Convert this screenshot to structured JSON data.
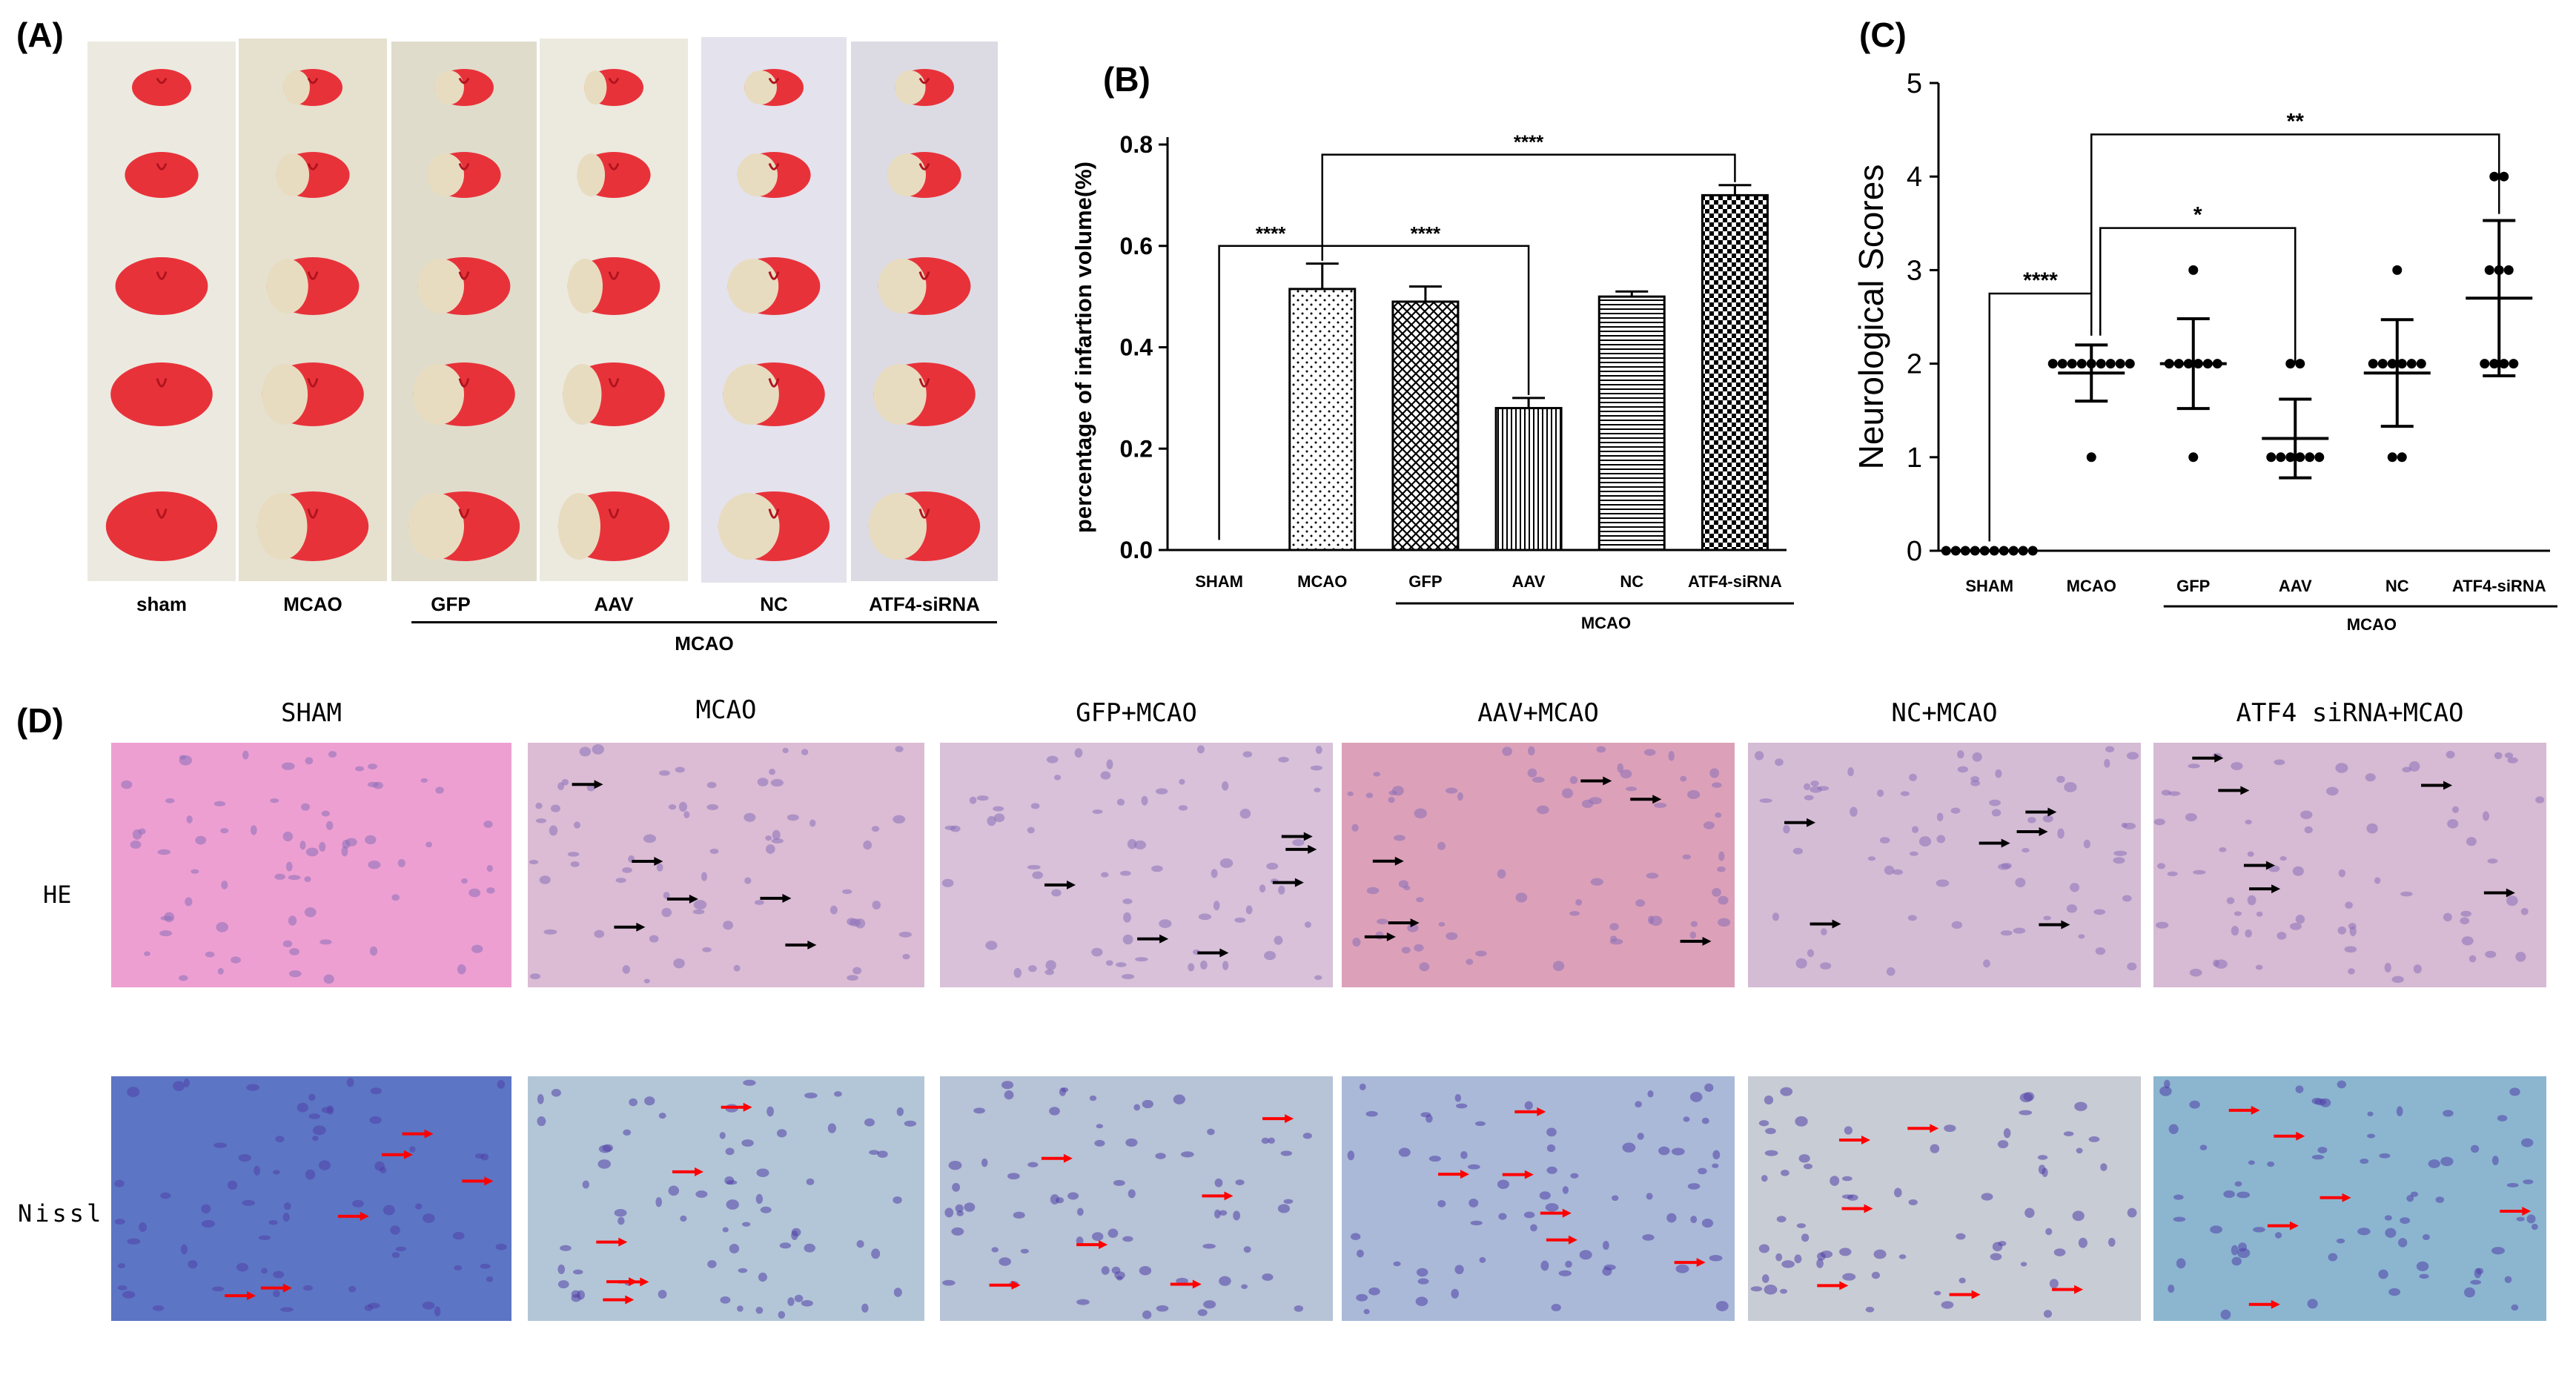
{
  "panels": {
    "a": {
      "letter": "(A)",
      "columns": [
        "sham",
        "MCAO",
        "GFP",
        "AAV",
        "NC",
        "ATF4-siRNA"
      ],
      "group_label": "MCAO"
    },
    "b": {
      "letter": "(B)"
    },
    "c": {
      "letter": "(C)"
    },
    "d": {
      "letter": "(D)",
      "columns": [
        "SHAM",
        "MCAO",
        "GFP+MCAO",
        "AAV+MCAO",
        "NC+MCAO",
        "ATF4 siRNA+MCAO"
      ],
      "rows": [
        "HE",
        "Nissl"
      ]
    }
  },
  "chart_data": [
    {
      "type": "bar",
      "panel": "(B)",
      "categories": [
        "SHAM",
        "MCAO",
        "GFP",
        "AAV",
        "NC",
        "ATF4-siRNA"
      ],
      "values": [
        0.0,
        0.515,
        0.49,
        0.28,
        0.5,
        0.7
      ],
      "errors": [
        0.0,
        0.05,
        0.03,
        0.02,
        0.01,
        0.02
      ],
      "patterns": [
        "none",
        "dots",
        "crosshatch",
        "vertical",
        "horizontal",
        "checker"
      ],
      "ylabel": "percentage of infartion volume(%)",
      "ylim": [
        0.0,
        0.8
      ],
      "yticks": [
        "0.0",
        "0.2",
        "0.4",
        "0.6",
        "0.8"
      ],
      "group_label": "MCAO",
      "significance": [
        {
          "from": "SHAM",
          "to": "MCAO",
          "label": "****"
        },
        {
          "from": "MCAO",
          "to": "AAV",
          "label": "****"
        },
        {
          "from": "MCAO",
          "to": "ATF4-siRNA",
          "label": "****"
        }
      ]
    },
    {
      "type": "scatter",
      "panel": "(C)",
      "categories": [
        "SHAM",
        "MCAO",
        "GFP",
        "AAV",
        "NC",
        "ATF4-siRNA"
      ],
      "points": [
        [
          0,
          0,
          0,
          0,
          0,
          0,
          0,
          0,
          0,
          0
        ],
        [
          1,
          2,
          2,
          2,
          2,
          2,
          2,
          2,
          2,
          2
        ],
        [
          1,
          2,
          2,
          2,
          2,
          2,
          2,
          3
        ],
        [
          1,
          1,
          1,
          1,
          1,
          1,
          2,
          2
        ],
        [
          1,
          1,
          2,
          2,
          2,
          2,
          2,
          2,
          3
        ],
        [
          2,
          2,
          2,
          2,
          3,
          3,
          3,
          4,
          4
        ]
      ],
      "mean": [
        0.0,
        1.9,
        2.0,
        1.2,
        1.9,
        2.7
      ],
      "sd": [
        0.0,
        0.3,
        0.48,
        0.42,
        0.57,
        0.83
      ],
      "ylabel": "Neurological Scores",
      "ylim": [
        0,
        5
      ],
      "yticks": [
        "0",
        "1",
        "2",
        "3",
        "4",
        "5"
      ],
      "group_label": "MCAO",
      "significance": [
        {
          "from": "SHAM",
          "to": "MCAO",
          "label": "****"
        },
        {
          "from": "MCAO",
          "to": "AAV",
          "label": "*"
        },
        {
          "from": "MCAO",
          "to": "ATF4-siRNA",
          "label": "**"
        }
      ]
    }
  ],
  "colors": {
    "ttc_red": "#e8323a",
    "ttc_pale": "#e8dcc0",
    "he_pink": "#e9a6cb",
    "he_tissue": "#d7a9c6",
    "nissl_blue": "#a9c0d8",
    "arrow_black": "#000000",
    "arrow_red": "#ff0000"
  }
}
